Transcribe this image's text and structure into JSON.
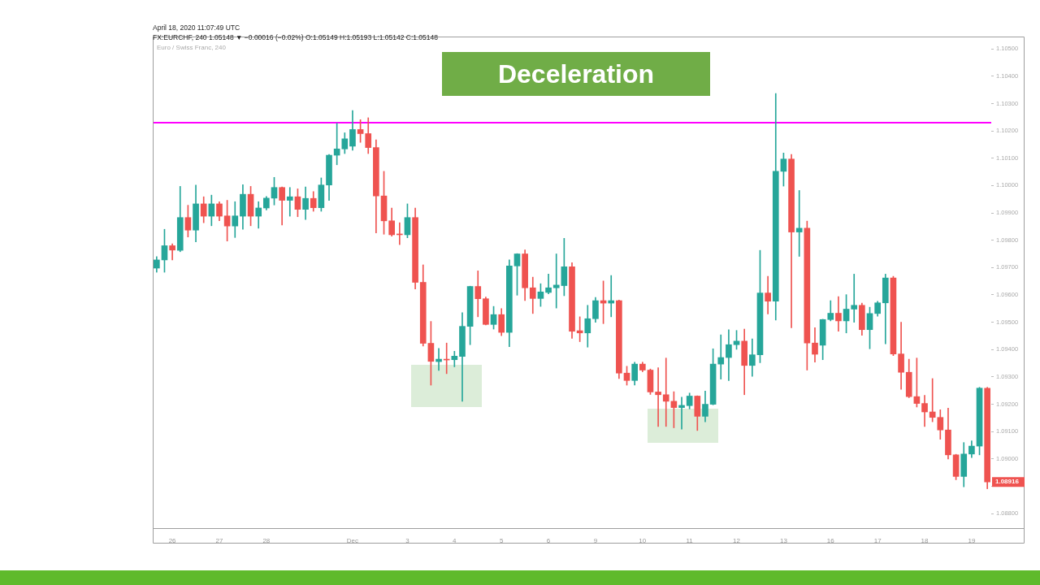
{
  "chart_data": {
    "type": "candlestick",
    "title": "Deceleration",
    "subtitle": "FX:EURCHF, 240 1.05148 ▼ −0.00016 (−0.02%) O:1.05149 H:1.05193 L:1.05142 C:1.05148",
    "annotations": [
      "April 18, 2020 11:07:49 UTC",
      "Euro / Swiss Franc, 240",
      {
        "text": "1.08916",
        "y": 1.08916
      }
    ],
    "categories": [
      null,
      null,
      "26",
      null,
      null,
      null,
      null,
      null,
      "27",
      null,
      null,
      null,
      null,
      null,
      "28",
      null,
      null,
      null,
      null,
      null,
      null,
      null,
      null,
      null,
      null,
      "Dec",
      null,
      null,
      null,
      null,
      null,
      null,
      "3",
      null,
      null,
      null,
      null,
      null,
      "4",
      null,
      null,
      null,
      null,
      null,
      "5",
      null,
      null,
      null,
      null,
      null,
      "6",
      null,
      null,
      null,
      null,
      null,
      "9",
      null,
      null,
      null,
      null,
      null,
      "10",
      null,
      null,
      null,
      null,
      null,
      "11",
      null,
      null,
      null,
      null,
      null,
      "12",
      null,
      null,
      null,
      null,
      null,
      "13",
      null,
      null,
      null,
      null,
      null,
      "16",
      null,
      null,
      null,
      null,
      null,
      "17",
      null,
      null,
      null,
      null,
      null,
      "18",
      null,
      null,
      null,
      null,
      null,
      "19",
      null,
      null
    ],
    "ohlc": [
      [
        1.09698,
        1.0974,
        1.09683,
        1.09728
      ],
      [
        1.09728,
        1.0984,
        1.09683,
        1.0978
      ],
      [
        1.0978,
        1.09787,
        1.09728,
        1.09764
      ],
      [
        1.09763,
        1.09997,
        1.09758,
        1.09883
      ],
      [
        1.09883,
        1.09928,
        1.09812,
        1.09837
      ],
      [
        1.09837,
        1.10002,
        1.09794,
        1.09933
      ],
      [
        1.09933,
        1.09959,
        1.09864,
        1.09888
      ],
      [
        1.09888,
        1.09965,
        1.09853,
        1.09933
      ],
      [
        1.09933,
        1.09941,
        1.09871,
        1.09888
      ],
      [
        1.09889,
        1.09946,
        1.09797,
        1.09852
      ],
      [
        1.09852,
        1.09941,
        1.0981,
        1.09889
      ],
      [
        1.09888,
        1.10003,
        1.0984,
        1.09968
      ],
      [
        1.09968,
        1.09997,
        1.09853,
        1.09888
      ],
      [
        1.09888,
        1.09941,
        1.09844,
        1.09918
      ],
      [
        1.09918,
        1.0996,
        1.09911,
        1.09954
      ],
      [
        1.09954,
        1.1003,
        1.09929,
        1.09993
      ],
      [
        1.09993,
        1.09995,
        1.09856,
        1.09946
      ],
      [
        1.09946,
        1.09993,
        1.09888,
        1.09959
      ],
      [
        1.09959,
        1.09988,
        1.09886,
        1.09913
      ],
      [
        1.09913,
        1.09995,
        1.09876,
        1.09953
      ],
      [
        1.09953,
        1.09978,
        1.09906,
        1.09919
      ],
      [
        1.09919,
        1.10028,
        1.09906,
        1.10002
      ],
      [
        1.10002,
        1.10114,
        1.09946,
        1.10111
      ],
      [
        1.10111,
        1.10228,
        1.10076,
        1.10134
      ],
      [
        1.10134,
        1.10193,
        1.10117,
        1.10171
      ],
      [
        1.10144,
        1.10274,
        1.10129,
        1.10205
      ],
      [
        1.10205,
        1.10241,
        1.10158,
        1.1019
      ],
      [
        1.1019,
        1.10248,
        1.10117,
        1.10139
      ],
      [
        1.10139,
        1.10167,
        1.09827,
        1.09962
      ],
      [
        1.09962,
        1.10052,
        1.09822,
        1.09871
      ],
      [
        1.09871,
        1.09918,
        1.09815,
        1.0982
      ],
      [
        1.09822,
        1.09864,
        1.09784,
        1.0982
      ],
      [
        1.0982,
        1.09933,
        1.09809,
        1.09883
      ],
      [
        1.09883,
        1.09918,
        1.09622,
        1.09646
      ],
      [
        1.09646,
        1.0971,
        1.09413,
        1.09423
      ],
      [
        1.09423,
        1.09503,
        1.0927,
        1.09357
      ],
      [
        1.09356,
        1.09404,
        1.09324,
        1.09365
      ],
      [
        1.09365,
        1.09424,
        1.09312,
        1.09362
      ],
      [
        1.09363,
        1.09394,
        1.09337,
        1.09376
      ],
      [
        1.09375,
        1.09535,
        1.09211,
        1.09485
      ],
      [
        1.09485,
        1.09632,
        1.09418,
        1.09631
      ],
      [
        1.09631,
        1.09688,
        1.0952,
        1.09586
      ],
      [
        1.09586,
        1.09592,
        1.0949,
        1.09492
      ],
      [
        1.09492,
        1.09558,
        1.09475,
        1.09528
      ],
      [
        1.09528,
        1.0955,
        1.09451,
        1.09463
      ],
      [
        1.09463,
        1.09728,
        1.09411,
        1.09706
      ],
      [
        1.09706,
        1.09751,
        1.09599,
        1.0975
      ],
      [
        1.0975,
        1.09765,
        1.09579,
        1.09626
      ],
      [
        1.09626,
        1.09665,
        1.09532,
        1.09587
      ],
      [
        1.09587,
        1.09641,
        1.09558,
        1.09611
      ],
      [
        1.09609,
        1.09676,
        1.09604,
        1.09626
      ],
      [
        1.09626,
        1.0975,
        1.09552,
        1.09636
      ],
      [
        1.09634,
        1.09807,
        1.09597,
        1.09703
      ],
      [
        1.09703,
        1.09718,
        1.09441,
        1.09467
      ],
      [
        1.09469,
        1.0952,
        1.09429,
        1.09461
      ],
      [
        1.09461,
        1.09562,
        1.09409,
        1.09513
      ],
      [
        1.09513,
        1.09591,
        1.095,
        1.09579
      ],
      [
        1.09579,
        1.09651,
        1.09495,
        1.0957
      ],
      [
        1.0957,
        1.09671,
        1.0952,
        1.09579
      ],
      [
        1.09579,
        1.09581,
        1.09294,
        1.09314
      ],
      [
        1.09314,
        1.09339,
        1.0927,
        1.09287
      ],
      [
        1.09287,
        1.09354,
        1.0927,
        1.09347
      ],
      [
        1.09347,
        1.09354,
        1.09319,
        1.09325
      ],
      [
        1.09325,
        1.09329,
        1.09236,
        1.09245
      ],
      [
        1.09245,
        1.09334,
        1.09119,
        1.09235
      ],
      [
        1.09235,
        1.09369,
        1.09119,
        1.09211
      ],
      [
        1.09211,
        1.09246,
        1.09114,
        1.09188
      ],
      [
        1.09188,
        1.09226,
        1.09109,
        1.09196
      ],
      [
        1.09195,
        1.09241,
        1.09183,
        1.0923
      ],
      [
        1.0923,
        1.09231,
        1.09104,
        1.09156
      ],
      [
        1.09156,
        1.09248,
        1.09136,
        1.092
      ],
      [
        1.092,
        1.09403,
        1.09198,
        1.09347
      ],
      [
        1.09347,
        1.09454,
        1.09292,
        1.09371
      ],
      [
        1.09371,
        1.09473,
        1.09287,
        1.09418
      ],
      [
        1.09418,
        1.0947,
        1.09401,
        1.09431
      ],
      [
        1.09431,
        1.09475,
        1.09235,
        1.09342
      ],
      [
        1.09342,
        1.09439,
        1.09302,
        1.09381
      ],
      [
        1.09381,
        1.09763,
        1.09352,
        1.09607
      ],
      [
        1.09607,
        1.09668,
        1.0953,
        1.09577
      ],
      [
        1.09577,
        1.10337,
        1.09508,
        1.10052
      ],
      [
        1.10052,
        1.10119,
        1.09998,
        1.10097
      ],
      [
        1.10097,
        1.10114,
        1.0948,
        1.0983
      ],
      [
        1.0983,
        1.09982,
        1.09741,
        1.09844
      ],
      [
        1.09844,
        1.0987,
        1.09325,
        1.09424
      ],
      [
        1.09424,
        1.0948,
        1.09354,
        1.09383
      ],
      [
        1.09416,
        1.09511,
        1.09363,
        1.0951
      ],
      [
        1.0951,
        1.09579,
        1.09505,
        1.09533
      ],
      [
        1.09533,
        1.09594,
        1.09467,
        1.09505
      ],
      [
        1.09505,
        1.09601,
        1.09461,
        1.09548
      ],
      [
        1.09548,
        1.09676,
        1.095,
        1.09562
      ],
      [
        1.09562,
        1.0957,
        1.09452,
        1.09473
      ],
      [
        1.09473,
        1.09555,
        1.09403,
        1.09532
      ],
      [
        1.09532,
        1.09577,
        1.09522,
        1.09571
      ],
      [
        1.09571,
        1.09676,
        1.09421,
        1.09662
      ],
      [
        1.09662,
        1.09668,
        1.09378,
        1.09384
      ],
      [
        1.09384,
        1.095,
        1.09255,
        1.09317
      ],
      [
        1.09317,
        1.09365,
        1.09224,
        1.09228
      ],
      [
        1.09228,
        1.09369,
        1.0919,
        1.09203
      ],
      [
        1.09203,
        1.09233,
        1.09119,
        1.09172
      ],
      [
        1.09172,
        1.09294,
        1.09136,
        1.09152
      ],
      [
        1.09152,
        1.0918,
        1.09072,
        1.09106
      ],
      [
        1.09106,
        1.09186,
        1.09,
        1.09015
      ],
      [
        1.09015,
        1.09017,
        1.08924,
        1.08936
      ],
      [
        1.08936,
        1.0906,
        1.08898,
        1.09018
      ],
      [
        1.09018,
        1.09066,
        1.09005,
        1.09047
      ],
      [
        1.09047,
        1.09262,
        1.09015,
        1.09259
      ],
      [
        1.09259,
        1.09262,
        1.08891,
        1.08916
      ]
    ],
    "colors": [
      "#26a69a",
      "#26a69a",
      "#ef5350",
      "#26a69a",
      "#ef5350",
      "#26a69a",
      "#ef5350",
      "#26a69a",
      "#ef5350",
      "#ef5350",
      "#26a69a",
      "#26a69a",
      "#ef5350",
      "#26a69a",
      "#26a69a",
      "#26a69a",
      "#ef5350",
      "#26a69a",
      "#ef5350",
      "#26a69a",
      "#ef5350",
      "#26a69a",
      "#26a69a",
      "#26a69a",
      "#26a69a",
      "#26a69a",
      "#ef5350",
      "#ef5350",
      "#ef5350",
      "#ef5350",
      "#ef5350",
      "#ef5350",
      "#26a69a",
      "#ef5350",
      "#ef5350",
      "#ef5350",
      "#26a69a",
      "#ef5350",
      "#26a69a",
      "#26a69a",
      "#26a69a",
      "#ef5350",
      "#ef5350",
      "#26a69a",
      "#ef5350",
      "#26a69a",
      "#26a69a",
      "#ef5350",
      "#ef5350",
      "#26a69a",
      "#26a69a",
      "#26a69a",
      "#26a69a",
      "#ef5350",
      "#ef5350",
      "#26a69a",
      "#26a69a",
      "#ef5350",
      "#26a69a",
      "#ef5350",
      "#ef5350",
      "#26a69a",
      "#ef5350",
      "#ef5350",
      "#ef5350",
      "#ef5350",
      "#ef5350",
      "#26a69a",
      "#26a69a",
      "#ef5350",
      "#26a69a",
      "#26a69a",
      "#26a69a",
      "#26a69a",
      "#26a69a",
      "#ef5350",
      "#26a69a",
      "#26a69a",
      "#ef5350",
      "#26a69a",
      "#26a69a",
      "#ef5350",
      "#26a69a",
      "#ef5350",
      "#ef5350",
      "#26a69a",
      "#26a69a",
      "#ef5350",
      "#26a69a",
      "#26a69a",
      "#ef5350",
      "#26a69a",
      "#26a69a",
      "#26a69a",
      "#ef5350",
      "#ef5350",
      "#ef5350",
      "#ef5350",
      "#ef5350",
      "#ef5350",
      "#ef5350",
      "#ef5350",
      "#ef5350",
      "#26a69a",
      "#26a69a",
      "#26a69a",
      "#ef5350"
    ],
    "ylim": [
      1.08747,
      1.10545
    ],
    "yticks": [
      {
        "value": 1.088,
        "label": "1.08800"
      },
      {
        "value": 1.089,
        "label": null
      },
      {
        "value": 1.09,
        "label": "1.09000"
      },
      {
        "value": 1.091,
        "label": "1.09100"
      },
      {
        "value": 1.092,
        "label": "1.09200"
      },
      {
        "value": 1.093,
        "label": "1.09300"
      },
      {
        "value": 1.094,
        "label": "1.09400"
      },
      {
        "value": 1.095,
        "label": "1.09500"
      },
      {
        "value": 1.096,
        "label": "1.09600"
      },
      {
        "value": 1.097,
        "label": "1.09700"
      },
      {
        "value": 1.098,
        "label": "1.09800"
      },
      {
        "value": 1.099,
        "label": "1.09900"
      },
      {
        "value": 1.1,
        "label": "1.10000"
      },
      {
        "value": 1.101,
        "label": "1.10100"
      },
      {
        "value": 1.102,
        "label": "1.10200"
      },
      {
        "value": 1.103,
        "label": "1.10300"
      },
      {
        "value": 1.104,
        "label": "1.10400"
      },
      {
        "value": 1.105,
        "label": "1.10500"
      }
    ],
    "ref_lines": [
      {
        "axis": "y",
        "value": 1.1023,
        "color": "#ff00ff"
      }
    ]
  }
}
